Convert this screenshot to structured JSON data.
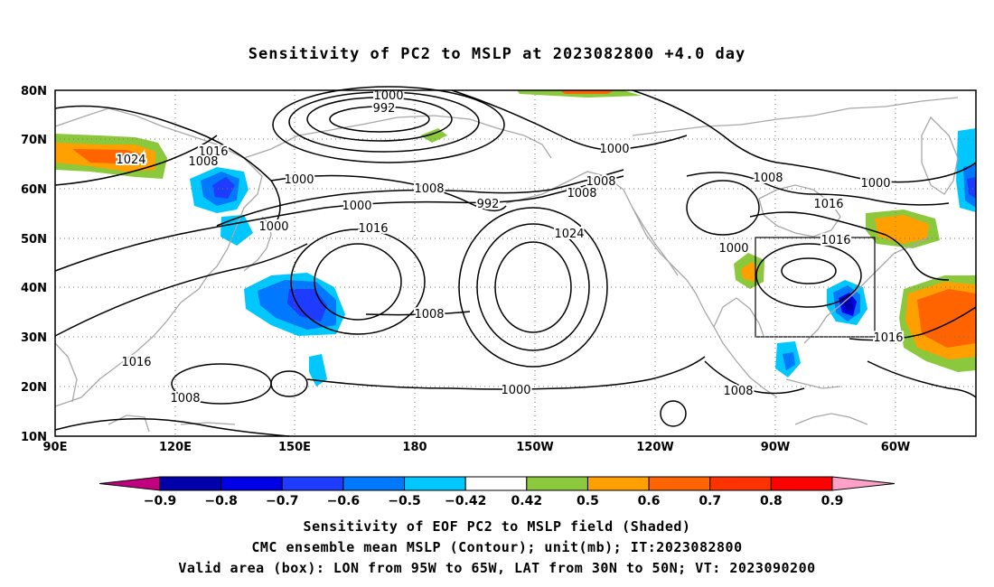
{
  "title": "Sensitivity of PC2 to MSLP at 2023082800 +4.0 day",
  "map": {
    "lat_labels": [
      "80N",
      "70N",
      "60N",
      "50N",
      "40N",
      "30N",
      "20N",
      "10N"
    ],
    "lon_labels": [
      "90E",
      "120E",
      "150E",
      "180",
      "150W",
      "120W",
      "90W",
      "60W"
    ],
    "valid_box": {
      "lon": [
        "95W",
        "65W"
      ],
      "lat": [
        "30N",
        "50N"
      ]
    }
  },
  "contour_labels": [
    {
      "text": "1000",
      "name": "isobar-1000-label"
    },
    {
      "text": "992",
      "name": "isobar-992-label"
    },
    {
      "text": "1016",
      "name": "isobar-1016-label"
    },
    {
      "text": "1024",
      "name": "isobar-1024-label"
    },
    {
      "text": "1008",
      "name": "isobar-1008-label"
    },
    {
      "text": "1000",
      "name": "isobar-1000-label"
    },
    {
      "text": "1000",
      "name": "isobar-1000-label"
    },
    {
      "text": "1008",
      "name": "isobar-1008-label"
    },
    {
      "text": "1000",
      "name": "isobar-1000-label"
    },
    {
      "text": "992",
      "name": "isobar-992-label"
    },
    {
      "text": "1016",
      "name": "isobar-1016-label"
    },
    {
      "text": "1008",
      "name": "isobar-1008-label"
    },
    {
      "text": "1000",
      "name": "isobar-1000-label"
    },
    {
      "text": "1008",
      "name": "isobar-1008-label"
    },
    {
      "text": "1000",
      "name": "isobar-1000-label"
    },
    {
      "text": "1008",
      "name": "isobar-1008-label"
    },
    {
      "text": "1016",
      "name": "isobar-1016-label"
    },
    {
      "text": "1024",
      "name": "isobar-1024-label"
    },
    {
      "text": "1000",
      "name": "isobar-1000-label"
    },
    {
      "text": "1016",
      "name": "isobar-1016-label"
    },
    {
      "text": "1016",
      "name": "isobar-1016-label"
    },
    {
      "text": "1008",
      "name": "isobar-1008-label"
    },
    {
      "text": "1000",
      "name": "isobar-1000-label"
    },
    {
      "text": "1016",
      "name": "isobar-1016-label"
    },
    {
      "text": "1008",
      "name": "isobar-1008-label"
    },
    {
      "text": "1008",
      "name": "isobar-1008-label"
    }
  ],
  "colorbar": {
    "bins": [
      {
        "color": "#c0007f"
      },
      {
        "color": "#0000a8"
      },
      {
        "color": "#0000e6"
      },
      {
        "color": "#1e3cff"
      },
      {
        "color": "#0078ff"
      },
      {
        "color": "#00c8ff"
      },
      {
        "color": "#ffffff"
      },
      {
        "color": "#8cc83c"
      },
      {
        "color": "#ffa000"
      },
      {
        "color": "#ff6400"
      },
      {
        "color": "#ff3200"
      },
      {
        "color": "#ff0000"
      },
      {
        "color": "#ffa0c8"
      }
    ],
    "labels": [
      "-0.9",
      "-0.8",
      "-0.7",
      "-0.6",
      "-0.5",
      "-0.42",
      "0.42",
      "0.5",
      "0.6",
      "0.7",
      "0.8",
      "0.9"
    ]
  },
  "captions": {
    "line1": "Sensitivity of EOF PC2 to MSLP field (Shaded)",
    "line2": "CMC ensemble mean MSLP (Contour); unit(mb); IT:2023082800",
    "line3": "Valid area (box): LON from 95W to 65W, LAT from 30N to 50N; VT: 2023090200"
  }
}
